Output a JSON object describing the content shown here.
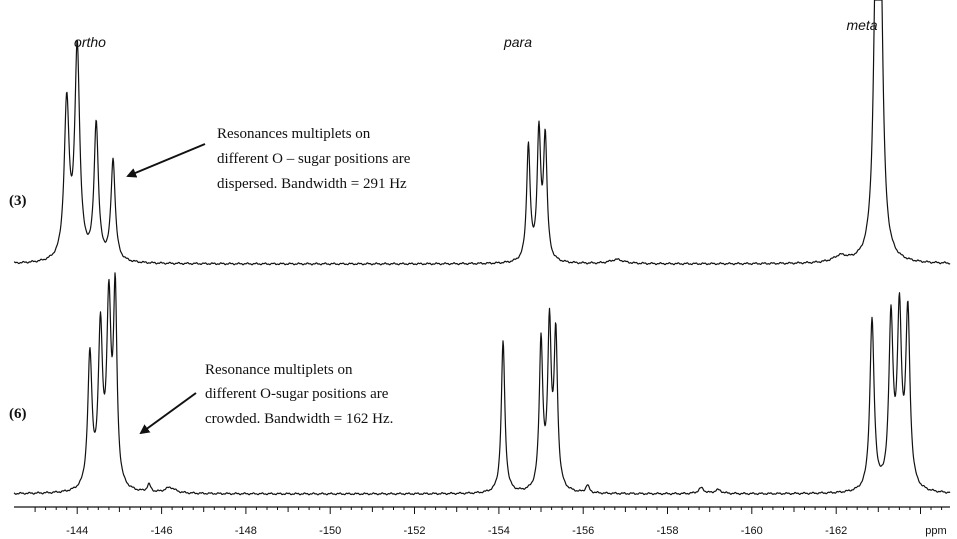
{
  "chart_data": {
    "type": "line",
    "title": "",
    "xlabel": "ppm",
    "ylabel": "",
    "xlim": [
      -142.5,
      -164.7
    ],
    "x_ticks": [
      -144,
      -146,
      -148,
      -150,
      -152,
      -154,
      -156,
      -158,
      -160,
      -162
    ],
    "x_tick_labels": [
      "-144",
      "-146",
      "-148",
      "-150",
      "-152",
      "-154",
      "-156",
      "-158",
      "-160",
      "-162"
    ],
    "grid": false,
    "region_labels": [
      {
        "text": "ortho",
        "ppm": -144.0
      },
      {
        "text": "para",
        "ppm": -154.9
      },
      {
        "text": "meta",
        "ppm": -163.0
      }
    ],
    "series": [
      {
        "name": "(3)",
        "peaks": [
          {
            "ppm": -143.75,
            "height": 0.74,
            "width": 0.07
          },
          {
            "ppm": -144.0,
            "height": 1.0,
            "width": 0.07
          },
          {
            "ppm": -144.45,
            "height": 0.65,
            "width": 0.06
          },
          {
            "ppm": -144.85,
            "height": 0.48,
            "width": 0.06
          },
          {
            "ppm": -154.7,
            "height": 0.55,
            "width": 0.05
          },
          {
            "ppm": -154.95,
            "height": 0.6,
            "width": 0.05
          },
          {
            "ppm": -155.1,
            "height": 0.58,
            "width": 0.05
          },
          {
            "ppm": -156.8,
            "height": 0.02,
            "width": 0.2
          },
          {
            "ppm": -162.1,
            "height": 0.03,
            "width": 0.2
          },
          {
            "ppm": -162.95,
            "height": 1.38,
            "width": 0.07
          },
          {
            "ppm": -163.05,
            "height": 1.25,
            "width": 0.07
          }
        ],
        "annotation": {
          "lines": [
            "Resonances multiplets on",
            "different O – sugar positions are",
            "dispersed. Bandwidth = 291 Hz"
          ],
          "points_to_ppm": -144.7
        }
      },
      {
        "name": "(6)",
        "peaks": [
          {
            "ppm": -144.3,
            "height": 0.7,
            "width": 0.06
          },
          {
            "ppm": -144.55,
            "height": 0.82,
            "width": 0.06
          },
          {
            "ppm": -144.75,
            "height": 0.95,
            "width": 0.06
          },
          {
            "ppm": -144.9,
            "height": 1.0,
            "width": 0.05
          },
          {
            "ppm": -145.7,
            "height": 0.04,
            "width": 0.05
          },
          {
            "ppm": -146.2,
            "height": 0.03,
            "width": 0.15
          },
          {
            "ppm": -154.1,
            "height": 0.8,
            "width": 0.05
          },
          {
            "ppm": -155.0,
            "height": 0.78,
            "width": 0.05
          },
          {
            "ppm": -155.2,
            "height": 0.85,
            "width": 0.05
          },
          {
            "ppm": -155.35,
            "height": 0.8,
            "width": 0.05
          },
          {
            "ppm": -156.1,
            "height": 0.04,
            "width": 0.05
          },
          {
            "ppm": -158.8,
            "height": 0.03,
            "width": 0.08
          },
          {
            "ppm": -159.2,
            "height": 0.02,
            "width": 0.1
          },
          {
            "ppm": -162.85,
            "height": 0.9,
            "width": 0.06
          },
          {
            "ppm": -163.3,
            "height": 0.88,
            "width": 0.06
          },
          {
            "ppm": -163.5,
            "height": 0.9,
            "width": 0.06
          },
          {
            "ppm": -163.7,
            "height": 0.92,
            "width": 0.06
          }
        ],
        "annotation": {
          "lines": [
            "Resonance multiplets  on",
            "different O-sugar  positions are",
            "crowded. Bandwidth = 162 Hz."
          ],
          "points_to_ppm": -145.0
        }
      }
    ]
  }
}
